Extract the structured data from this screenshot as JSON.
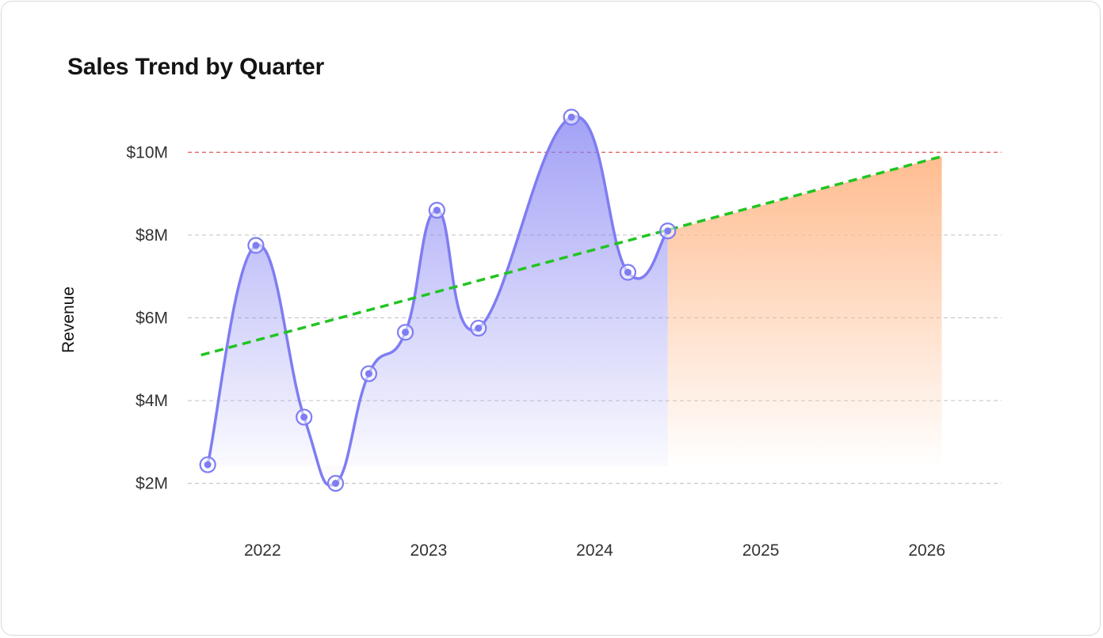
{
  "chart_data": {
    "type": "line",
    "title": "Sales Trend by Quarter",
    "xlabel": "",
    "ylabel": "Revenue",
    "x_ticks": [
      "2022",
      "2023",
      "2024",
      "2025",
      "2026"
    ],
    "y_ticks": [
      "$2M",
      "$4M",
      "$6M",
      "$8M",
      "$10M"
    ],
    "y_tick_values": [
      2,
      4,
      6,
      8,
      10
    ],
    "ylim": [
      0.5,
      11.5
    ],
    "xlim": [
      2021.55,
      2026.45
    ],
    "grid": true,
    "target_line_value": 10,
    "series": [
      {
        "x": [
          2021.67,
          2021.96,
          2022.25,
          2022.44,
          2022.64,
          2022.86,
          2023.05,
          2023.3,
          2023.86,
          2024.2,
          2024.44
        ],
        "values": [
          2.45,
          7.75,
          3.6,
          2.0,
          4.65,
          5.65,
          8.6,
          5.75,
          10.85,
          7.1,
          8.1
        ]
      }
    ],
    "trend_line": {
      "x": [
        2021.63,
        2026.09
      ],
      "values": [
        5.1,
        9.9
      ]
    },
    "forecast_area": {
      "x": [
        2024.44,
        2026.09
      ],
      "values": [
        8.1,
        9.9
      ]
    },
    "colors": {
      "series": "#7f7df2",
      "trend": "#22c422",
      "target": "#e05a5a",
      "forecast": "#ffb98a",
      "grid": "#c8c8c8"
    }
  }
}
